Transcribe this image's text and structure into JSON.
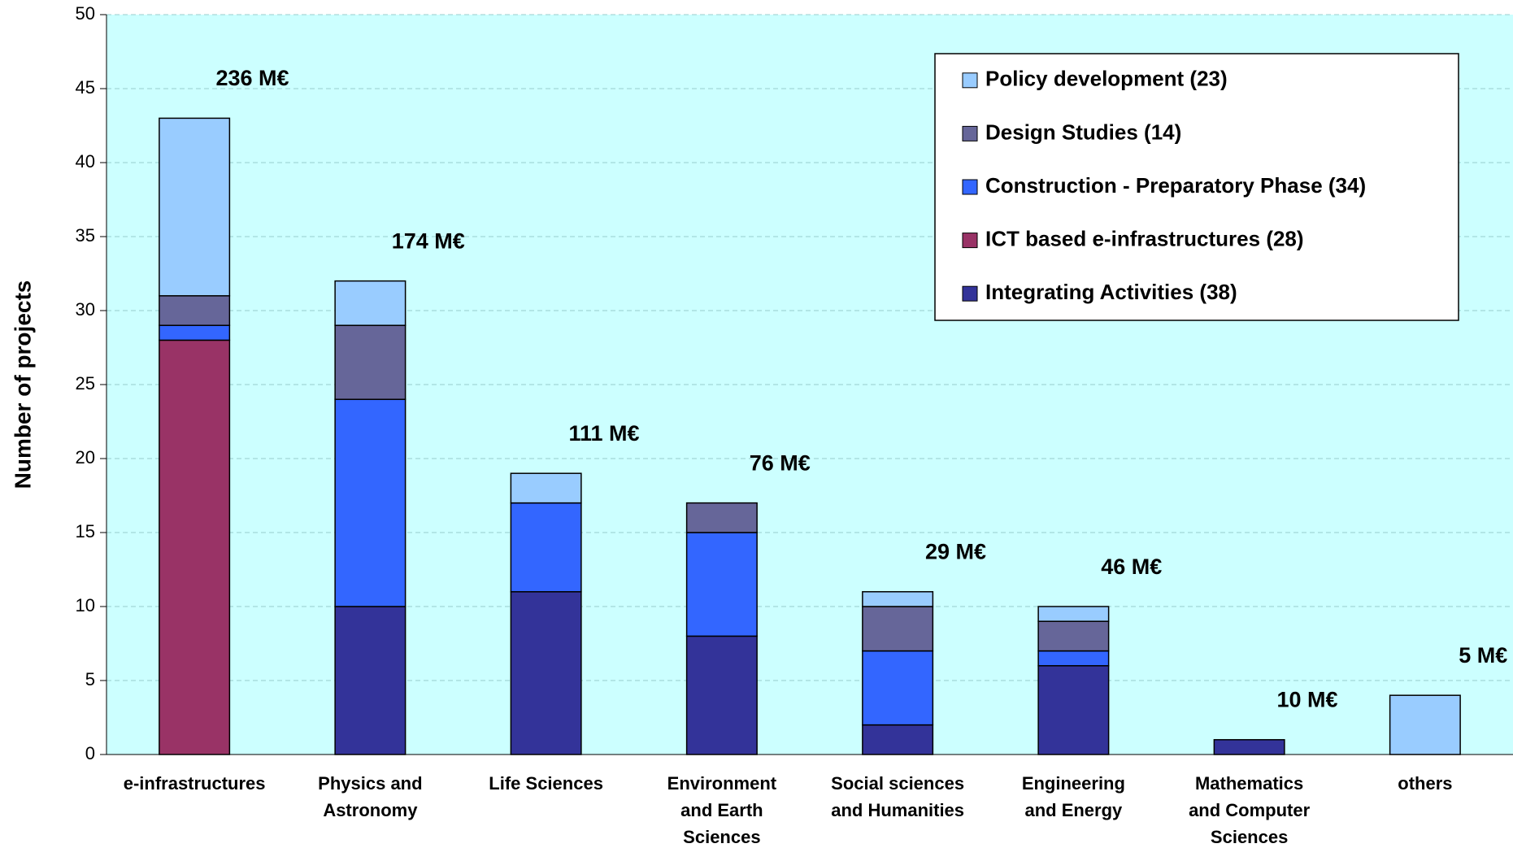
{
  "chart_data": {
    "type": "stacked_bar",
    "ylabel": "Number of projects",
    "categories": [
      "e-infrastructures",
      "Physics and\nAstronomy",
      "Life Sciences",
      "Environment\nand Earth\nSciences",
      "Social sciences\nand Humanities",
      "Engineering\nand Energy",
      "Mathematics\nand Computer\nSciences",
      "others"
    ],
    "annotations": [
      "236 M€",
      "174 M€",
      "111 M€",
      "76 M€",
      "29 M€",
      "46 M€",
      "10 M€",
      "5 M€"
    ],
    "series": [
      {
        "name": "Integrating Activities (38)",
        "color": "#333399",
        "values": [
          0,
          10,
          11,
          8,
          2,
          6,
          1,
          0
        ]
      },
      {
        "name": "ICT based e-infrastructures (28)",
        "color": "#993366",
        "values": [
          28,
          0,
          0,
          0,
          0,
          0,
          0,
          0
        ]
      },
      {
        "name": "Construction - Preparatory Phase (34)",
        "color": "#3366ff",
        "values": [
          1,
          14,
          6,
          7,
          5,
          1,
          0,
          0
        ]
      },
      {
        "name": "Design Studies (14)",
        "color": "#666699",
        "values": [
          2,
          5,
          0,
          2,
          3,
          2,
          0,
          0
        ]
      },
      {
        "name": "Policy development (23)",
        "color": "#99ccff",
        "values": [
          12,
          3,
          2,
          0,
          1,
          1,
          0,
          4
        ]
      }
    ],
    "ylim": [
      0,
      50
    ],
    "yticks": [
      0,
      5,
      10,
      15,
      20,
      25,
      30,
      35,
      40,
      45,
      50
    ],
    "grid": true,
    "legend": "top-right"
  }
}
